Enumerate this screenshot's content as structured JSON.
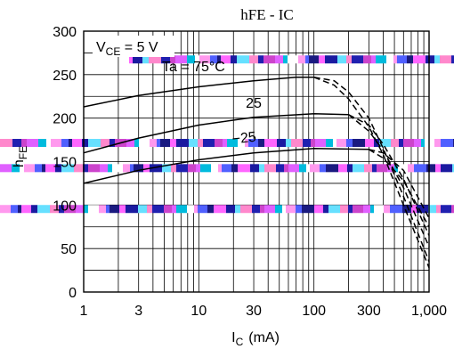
{
  "chart_data": {
    "type": "line",
    "title": "hFE - IC",
    "xlabel_main": "I",
    "xlabel_sub": "C",
    "xlabel_unit": "(mA)",
    "ylabel_main": "h",
    "ylabel_sub": "FE",
    "x_scale": "log",
    "xlim": [
      1,
      1000
    ],
    "ylim": [
      0,
      300
    ],
    "grid": true,
    "x_ticks": [
      {
        "value": 1,
        "label": "1"
      },
      {
        "value": 3,
        "label": "3"
      },
      {
        "value": 10,
        "label": "10"
      },
      {
        "value": 30,
        "label": "30"
      },
      {
        "value": 100,
        "label": "100"
      },
      {
        "value": 300,
        "label": "300"
      },
      {
        "value": 1000,
        "label": "1,000"
      }
    ],
    "y_ticks": [
      {
        "value": 0,
        "label": "0"
      },
      {
        "value": 50,
        "label": "50"
      },
      {
        "value": 100,
        "label": "100"
      },
      {
        "value": 150,
        "label": "150"
      },
      {
        "value": 200,
        "label": "200"
      },
      {
        "value": 250,
        "label": "250"
      },
      {
        "value": 300,
        "label": "300"
      }
    ],
    "condition": {
      "main": "V",
      "sub": "CE",
      "rest": " = 5 V"
    },
    "series": [
      {
        "name": "Ta = 75°C",
        "typical": [
          [
            1,
            213
          ],
          [
            3,
            226
          ],
          [
            10,
            236
          ],
          [
            30,
            243
          ],
          [
            70,
            247
          ],
          [
            100,
            247
          ]
        ],
        "bounds": [
          [
            [
              100,
              247
            ],
            [
              150,
              243
            ],
            [
              200,
              230
            ],
            [
              300,
              200
            ],
            [
              400,
              165
            ],
            [
              600,
              110
            ],
            [
              1000,
              35
            ]
          ],
          [
            [
              100,
              247
            ],
            [
              150,
              238
            ],
            [
              200,
              222
            ],
            [
              300,
              190
            ],
            [
              400,
              158
            ],
            [
              600,
              100
            ],
            [
              1000,
              28
            ]
          ]
        ]
      },
      {
        "name": "25",
        "typical": [
          [
            1,
            160
          ],
          [
            3,
            177
          ],
          [
            10,
            192
          ],
          [
            30,
            201
          ],
          [
            100,
            205
          ],
          [
            200,
            204
          ]
        ],
        "bounds": [
          [
            [
              200,
              204
            ],
            [
              300,
              192
            ],
            [
              400,
              170
            ],
            [
              600,
              130
            ],
            [
              1000,
              65
            ]
          ],
          [
            [
              200,
              204
            ],
            [
              300,
              185
            ],
            [
              400,
              163
            ],
            [
              600,
              120
            ],
            [
              1000,
              52
            ]
          ]
        ]
      },
      {
        "name": "−25",
        "typical": [
          [
            1,
            125
          ],
          [
            3,
            140
          ],
          [
            10,
            152
          ],
          [
            30,
            160
          ],
          [
            100,
            165
          ],
          [
            300,
            164
          ]
        ],
        "bounds": [
          [
            [
              300,
              164
            ],
            [
              400,
              160
            ],
            [
              600,
              140
            ],
            [
              1000,
              85
            ]
          ],
          [
            [
              300,
              164
            ],
            [
              400,
              154
            ],
            [
              600,
              128
            ],
            [
              1000,
              75
            ]
          ]
        ]
      }
    ],
    "overlay_bands_y": [
      268,
      172,
      143,
      96
    ]
  }
}
